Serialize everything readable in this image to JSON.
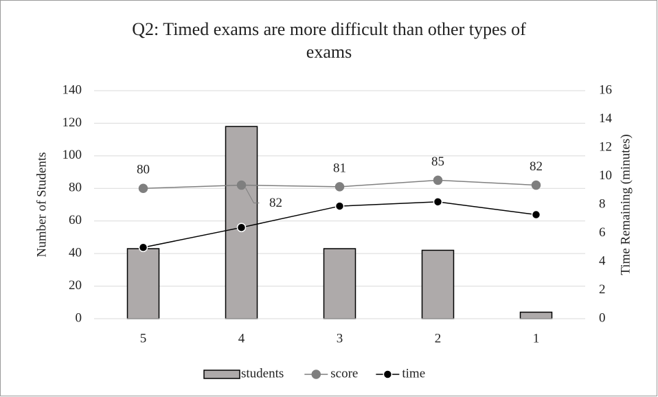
{
  "chart_data": {
    "type": "combo",
    "title": "Q2: Timed exams are more difficult than other types of exams",
    "categories": [
      "5",
      "4",
      "3",
      "2",
      "1"
    ],
    "series": [
      {
        "name": "students",
        "type": "bar",
        "color": "#aeaaaa",
        "values": [
          43,
          118,
          43,
          42,
          4
        ]
      },
      {
        "name": "score",
        "type": "line",
        "color": "#7f7f7f",
        "values": [
          80,
          82,
          81,
          85,
          82
        ],
        "data_labels": true
      },
      {
        "name": "time",
        "type": "line",
        "color": "#000000",
        "axis": "y2",
        "values": [
          5,
          6.4,
          7.9,
          8.2,
          7.3
        ]
      }
    ],
    "y_label": "Number of Students",
    "y2_label": "Time Remaining (minutes)",
    "ylim": [
      0,
      140
    ],
    "yticks": [
      0,
      20,
      40,
      60,
      80,
      100,
      120,
      140
    ],
    "y2lim": [
      0,
      16
    ],
    "y2ticks": [
      0,
      2,
      4,
      6,
      8,
      10,
      12,
      14,
      16
    ],
    "grid": true,
    "legend": "bottom"
  }
}
